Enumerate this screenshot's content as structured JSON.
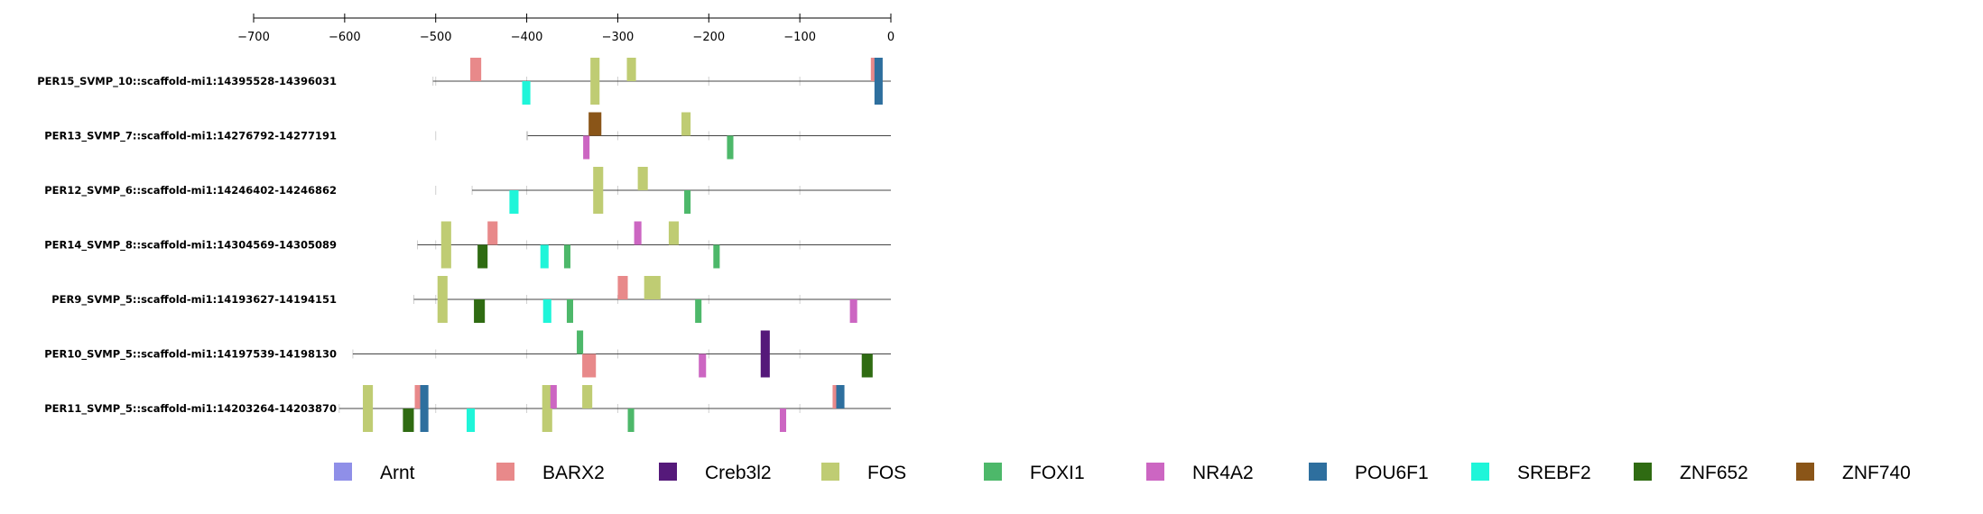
{
  "chart_data": {
    "type": "sequence-motif-map",
    "axis": {
      "min": -700,
      "max": 0,
      "ticks": [
        -700,
        -600,
        -500,
        -400,
        -300,
        -200,
        -100,
        0
      ]
    },
    "colors": {
      "Arnt": "#8f8fe8",
      "BARX2": "#e8898a",
      "Creb3l2": "#55197a",
      "FOS": "#bfcc73",
      "FOXI1": "#4db86a",
      "NR4A2": "#cc66c2",
      "POU6F1": "#2e6f9e",
      "SREBF2": "#1ff5d9",
      "ZNF652": "#2f6b12",
      "ZNF740": "#8a5518"
    },
    "legend": [
      "Arnt",
      "BARX2",
      "Creb3l2",
      "FOS",
      "FOXI1",
      "NR4A2",
      "POU6F1",
      "SREBF2",
      "ZNF652",
      "ZNF740"
    ],
    "sequences": [
      {
        "label": "PER15_SVMP_10::scaffold-mi1:14395528-14396031",
        "start": -503,
        "sites": [
          {
            "motif": "BARX2",
            "x1": -462,
            "x2": -450,
            "strand": "+"
          },
          {
            "motif": "FOS",
            "x1": -330,
            "x2": -320,
            "strand": "+"
          },
          {
            "motif": "FOS",
            "x1": -330,
            "x2": -320,
            "strand": "-"
          },
          {
            "motif": "FOS",
            "x1": -290,
            "x2": -280,
            "strand": "+"
          },
          {
            "motif": "SREBF2",
            "x1": -405,
            "x2": -396,
            "strand": "-"
          },
          {
            "motif": "BARX2",
            "x1": -22,
            "x2": -15,
            "strand": "+"
          },
          {
            "motif": "POU6F1",
            "x1": -18,
            "x2": -9,
            "strand": "+"
          },
          {
            "motif": "POU6F1",
            "x1": -18,
            "x2": -9,
            "strand": "-"
          }
        ]
      },
      {
        "label": "PER13_SVMP_7::scaffold-mi1:14276792-14277191",
        "start": -399,
        "sites": [
          {
            "motif": "ZNF740",
            "x1": -332,
            "x2": -318,
            "strand": "+"
          },
          {
            "motif": "FOS",
            "x1": -230,
            "x2": -220,
            "strand": "+"
          },
          {
            "motif": "NR4A2",
            "x1": -338,
            "x2": -331,
            "strand": "-"
          },
          {
            "motif": "FOXI1",
            "x1": -180,
            "x2": -173,
            "strand": "-"
          }
        ]
      },
      {
        "label": "PER12_SVMP_6::scaffold-mi1:14246402-14246862",
        "start": -460,
        "sites": [
          {
            "motif": "FOS",
            "x1": -327,
            "x2": -316,
            "strand": "+"
          },
          {
            "motif": "FOS",
            "x1": -327,
            "x2": -316,
            "strand": "-"
          },
          {
            "motif": "FOS",
            "x1": -278,
            "x2": -267,
            "strand": "+"
          },
          {
            "motif": "SREBF2",
            "x1": -419,
            "x2": -409,
            "strand": "-"
          },
          {
            "motif": "FOXI1",
            "x1": -227,
            "x2": -220,
            "strand": "-"
          }
        ]
      },
      {
        "label": "PER14_SVMP_8::scaffold-mi1:14304569-14305089",
        "start": -520,
        "sites": [
          {
            "motif": "FOS",
            "x1": -494,
            "x2": -483,
            "strand": "+"
          },
          {
            "motif": "FOS",
            "x1": -494,
            "x2": -483,
            "strand": "-"
          },
          {
            "motif": "BARX2",
            "x1": -443,
            "x2": -432,
            "strand": "+"
          },
          {
            "motif": "NR4A2",
            "x1": -282,
            "x2": -274,
            "strand": "+"
          },
          {
            "motif": "FOS",
            "x1": -244,
            "x2": -233,
            "strand": "+"
          },
          {
            "motif": "ZNF652",
            "x1": -454,
            "x2": -443,
            "strand": "-"
          },
          {
            "motif": "SREBF2",
            "x1": -385,
            "x2": -376,
            "strand": "-"
          },
          {
            "motif": "FOXI1",
            "x1": -359,
            "x2": -352,
            "strand": "-"
          },
          {
            "motif": "FOXI1",
            "x1": -195,
            "x2": -188,
            "strand": "-"
          }
        ]
      },
      {
        "label": "PER9_SVMP_5::scaffold-mi1:14193627-14194151",
        "start": -524,
        "sites": [
          {
            "motif": "FOS",
            "x1": -498,
            "x2": -487,
            "strand": "+"
          },
          {
            "motif": "FOS",
            "x1": -498,
            "x2": -487,
            "strand": "-"
          },
          {
            "motif": "BARX2",
            "x1": -300,
            "x2": -289,
            "strand": "+"
          },
          {
            "motif": "FOS",
            "x1": -271,
            "x2": -253,
            "strand": "+"
          },
          {
            "motif": "ZNF652",
            "x1": -458,
            "x2": -446,
            "strand": "-"
          },
          {
            "motif": "SREBF2",
            "x1": -382,
            "x2": -373,
            "strand": "-"
          },
          {
            "motif": "FOXI1",
            "x1": -356,
            "x2": -349,
            "strand": "-"
          },
          {
            "motif": "FOXI1",
            "x1": -215,
            "x2": -208,
            "strand": "-"
          },
          {
            "motif": "NR4A2",
            "x1": -45,
            "x2": -37,
            "strand": "-"
          }
        ]
      },
      {
        "label": "PER10_SVMP_5::scaffold-mi1:14197539-14198130",
        "start": -591,
        "sites": [
          {
            "motif": "FOXI1",
            "x1": -345,
            "x2": -338,
            "strand": "+"
          },
          {
            "motif": "Creb3l2",
            "x1": -143,
            "x2": -133,
            "strand": "+"
          },
          {
            "motif": "Creb3l2",
            "x1": -143,
            "x2": -133,
            "strand": "-"
          },
          {
            "motif": "BARX2",
            "x1": -339,
            "x2": -324,
            "strand": "-"
          },
          {
            "motif": "NR4A2",
            "x1": -211,
            "x2": -203,
            "strand": "-"
          },
          {
            "motif": "ZNF652",
            "x1": -32,
            "x2": -20,
            "strand": "-"
          }
        ]
      },
      {
        "label": "PER11_SVMP_5::scaffold-mi1:14203264-14203870",
        "start": -606,
        "sites": [
          {
            "motif": "FOS",
            "x1": -580,
            "x2": -569,
            "strand": "+"
          },
          {
            "motif": "FOS",
            "x1": -580,
            "x2": -569,
            "strand": "-"
          },
          {
            "motif": "BARX2",
            "x1": -523,
            "x2": -513,
            "strand": "+"
          },
          {
            "motif": "POU6F1",
            "x1": -517,
            "x2": -508,
            "strand": "+"
          },
          {
            "motif": "FOS",
            "x1": -383,
            "x2": -372,
            "strand": "+"
          },
          {
            "motif": "FOS",
            "x1": -383,
            "x2": -372,
            "strand": "-"
          },
          {
            "motif": "NR4A2",
            "x1": -374,
            "x2": -367,
            "strand": "+"
          },
          {
            "motif": "FOS",
            "x1": -339,
            "x2": -328,
            "strand": "+"
          },
          {
            "motif": "BARX2",
            "x1": -64,
            "x2": -52,
            "strand": "+"
          },
          {
            "motif": "POU6F1",
            "x1": -60,
            "x2": -51,
            "strand": "+"
          },
          {
            "motif": "ZNF652",
            "x1": -536,
            "x2": -524,
            "strand": "-"
          },
          {
            "motif": "POU6F1",
            "x1": -517,
            "x2": -508,
            "strand": "-"
          },
          {
            "motif": "SREBF2",
            "x1": -466,
            "x2": -457,
            "strand": "-"
          },
          {
            "motif": "FOXI1",
            "x1": -289,
            "x2": -282,
            "strand": "-"
          },
          {
            "motif": "NR4A2",
            "x1": -122,
            "x2": -115,
            "strand": "-"
          }
        ]
      }
    ]
  }
}
